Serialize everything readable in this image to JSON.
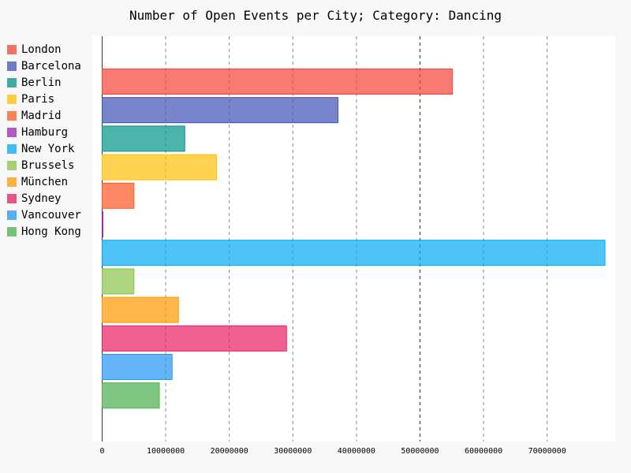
{
  "chart_data": {
    "type": "bar",
    "orientation": "horizontal",
    "title": "Number of Open Events per City; Category: Dancing",
    "xlabel": "",
    "ylabel": "",
    "categories": [
      "London",
      "Barcelona",
      "Berlin",
      "Paris",
      "Madrid",
      "Hamburg",
      "New York",
      "Brussels",
      "München",
      "Sydney",
      "Vancouver",
      "Hong Kong"
    ],
    "values": [
      55100000,
      37100000,
      13000000,
      18000000,
      5000000,
      20000,
      79100000,
      5000000,
      12000000,
      29000000,
      11000000,
      9000000
    ],
    "colors": [
      "#F44336",
      "#3F51B5",
      "#009688",
      "#FFC107",
      "#FF5722",
      "#9C27B0",
      "#03A9F4",
      "#8BC34A",
      "#FF9800",
      "#E91E63",
      "#2196F3",
      "#4CAF50"
    ],
    "xlim": [
      0,
      79100000
    ],
    "xticks": [
      0,
      10000000,
      20000000,
      30000000,
      40000000,
      50000000,
      60000000,
      70000000
    ],
    "xtick_labels": [
      "0",
      "10000000",
      "20000000",
      "30000000",
      "40000000",
      "50000000",
      "60000000",
      "70000000"
    ],
    "major_tick": 50000000,
    "grid": true,
    "legend_position": "left"
  }
}
